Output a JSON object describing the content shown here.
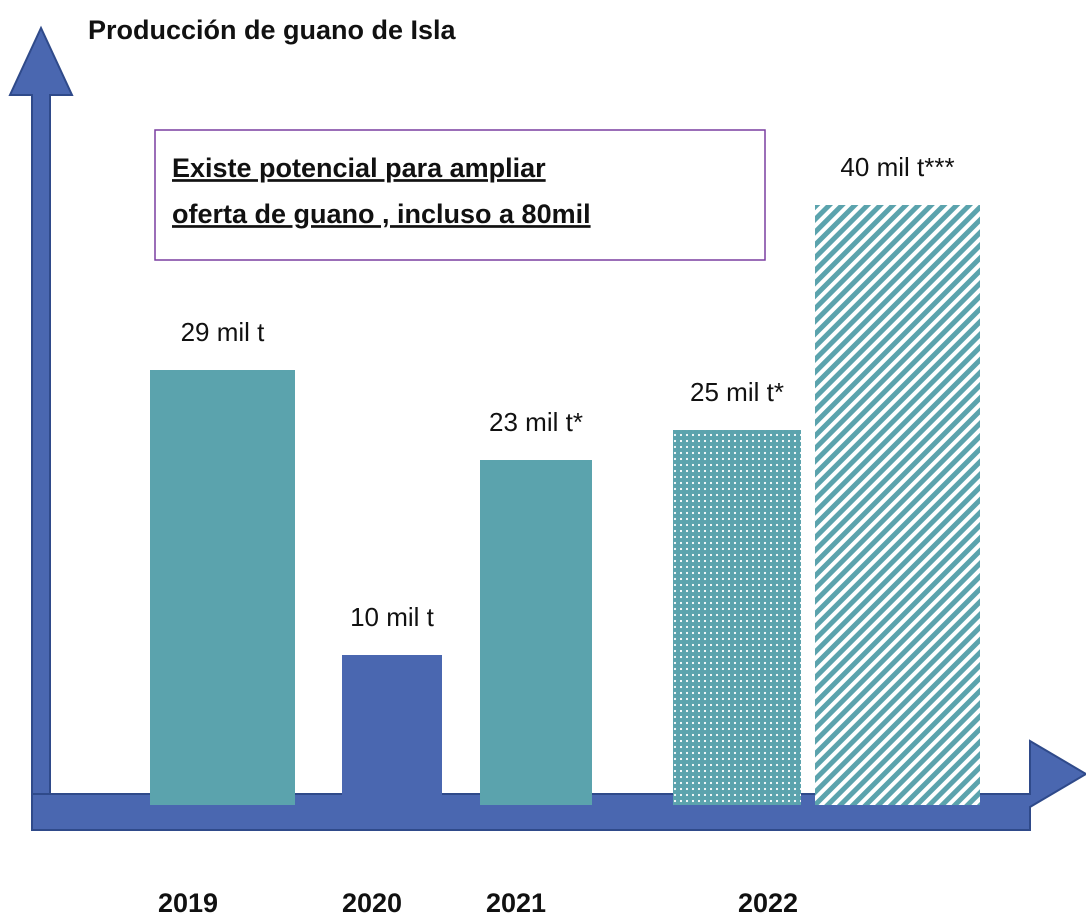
{
  "chart_data": {
    "type": "bar",
    "title": "Producción de guano de Isla",
    "annotation": [
      "Existe potencial para ampliar",
      "oferta de guano , incluso a 80mil"
    ],
    "categories": [
      "2019",
      "2020",
      "2021",
      "2022"
    ],
    "values": [
      [
        29
      ],
      [
        10
      ],
      [
        23
      ],
      [
        25,
        40
      ]
    ],
    "value_labels": [
      [
        "29 mil t"
      ],
      [
        "10 mil t"
      ],
      [
        "23 mil t*"
      ],
      [
        "25 mil t*",
        "40 mil t***"
      ]
    ],
    "colors": [
      [
        "#5ba3ad"
      ],
      [
        "#4a67b0"
      ],
      [
        "#5ba3ad"
      ],
      [
        "#5ba3ad",
        "#5ba3ad"
      ]
    ],
    "patterns": [
      [
        "solid"
      ],
      [
        "solid"
      ],
      [
        "solid"
      ],
      [
        "dots",
        "stripes"
      ]
    ]
  }
}
